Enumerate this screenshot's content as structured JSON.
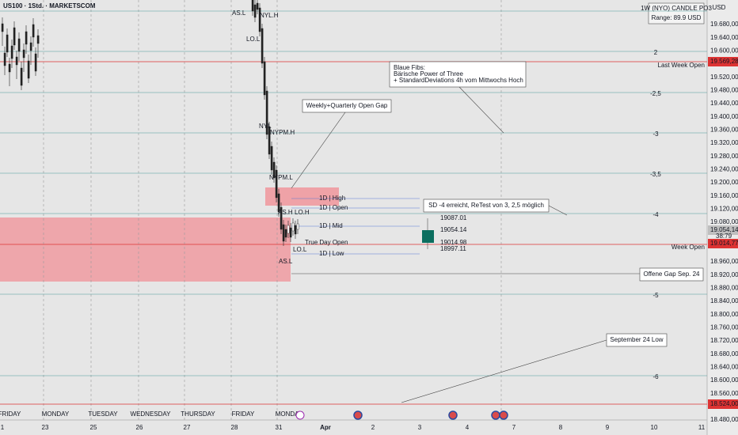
{
  "header": {
    "symbol": "US100 · 1Std. · MARKETSCOM"
  },
  "indicator_box": {
    "title": "1W (NYO) CANDLE PO3",
    "range": "Range: 89.9 USD"
  },
  "price_axis": {
    "currency": "USD",
    "labels": [
      "19.680,00",
      "19.640,00",
      "19.600,00",
      "19.520,00",
      "19.480,00",
      "19.440,00",
      "19.400,00",
      "19.360,00",
      "19.320,00",
      "19.280,00",
      "19.240,00",
      "19.200,00",
      "19.160,00",
      "19.120,00",
      "19.080,00",
      "18.960,00",
      "18.920,00",
      "18.880,00",
      "18.840,00",
      "18.800,00",
      "18.760,00",
      "18.720,00",
      "18.680,00",
      "18.640,00",
      "18.600,00",
      "18.560,00",
      "18.480,00"
    ],
    "last_week_open": "19.569,28",
    "current_price": "19.054,14",
    "countdown": "38:79",
    "week_open": "19.014,77",
    "september_low": "18.524,00"
  },
  "time_axis": {
    "dates": [
      "1",
      "23",
      "25",
      "26",
      "27",
      "28",
      "31",
      "Apr",
      "2",
      "3",
      "4",
      "7",
      "8",
      "9",
      "10",
      "11"
    ],
    "weekdays": [
      "FRIDAY",
      "MONDAY",
      "TUESDAY",
      "WEDNESDAY",
      "THURSDAY",
      "FRIDAY",
      "MONDAY"
    ]
  },
  "fib_levels": [
    "2",
    "-2,5",
    "-3",
    "-3,5",
    "-4",
    "-5",
    "-6"
  ],
  "level_labels": {
    "last_week_open": "Last Week Open",
    "week_open": "Week Open"
  },
  "daily_levels": [
    "1D | High",
    "1D | Open",
    "1D | Mid",
    "1D | Low"
  ],
  "session_labels": [
    "AS.L",
    "NYL.H",
    "LO.L",
    "NYL",
    "NYPM.H",
    "NYPM.L",
    "AS.H",
    "LO.H",
    "True Day Open",
    "LO.L",
    "AS.L"
  ],
  "candle_labels": [
    "19087.01",
    "19054.14",
    "19014.98",
    "18997.11"
  ],
  "annotations": [
    {
      "lines": [
        "Blaue Fibs:",
        "Bärische Power of Three",
        "+ StandardDeviations 4h vom Mittwochs Hoch"
      ]
    },
    {
      "text": "Weekly+Quarterly Open Gap"
    },
    {
      "text": "SD -4 erreicht, ReTest von 3, 2,5 möglich"
    },
    {
      "text": "Offene Gap Sep. 24"
    },
    {
      "text": "September 24 Low"
    }
  ]
}
